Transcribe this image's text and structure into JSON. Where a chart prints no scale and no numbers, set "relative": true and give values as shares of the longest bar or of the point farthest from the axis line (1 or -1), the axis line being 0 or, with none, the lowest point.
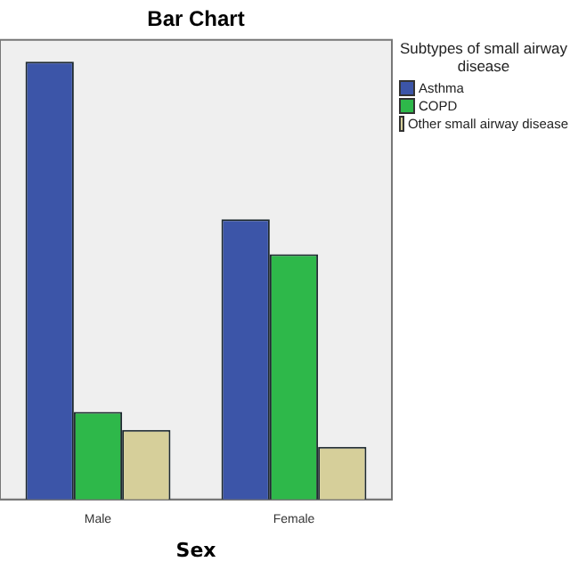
{
  "chart_data": {
    "type": "bar",
    "title": "Bar Chart",
    "xlabel": "Sex",
    "legend_title": "Subtypes of small airway disease",
    "legend": "top right",
    "relative": true,
    "grid": false,
    "categories": [
      "Male",
      "Female"
    ],
    "series": [
      {
        "name": "Asthma",
        "color": "#3c55a8",
        "values": [
          1,
          0.64
        ]
      },
      {
        "name": "COPD",
        "color": "#2eb84a",
        "values": [
          0.2,
          0.56
        ]
      },
      {
        "name": "Other small airway disease",
        "color": "#d6cf9a",
        "values": [
          0.159,
          0.12
        ]
      }
    ]
  }
}
